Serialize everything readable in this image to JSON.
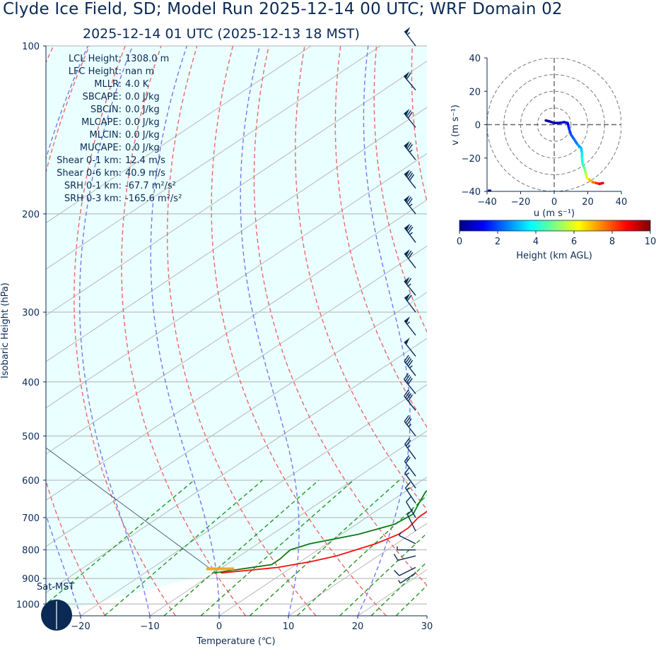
{
  "title": "Clyde Ice Field, SD; Model Run 2025-12-14 00 UTC; WRF Domain 02",
  "subtitle": "2025-12-14 01 UTC  (2025-12-13 18 MST)",
  "chart_data": [
    {
      "type": "skewt",
      "xlabel": "Temperature (℃)",
      "ylabel": "Isobaric Height (hPa)",
      "xlim": [
        -25,
        30
      ],
      "ylim": [
        1050,
        100
      ],
      "y_scale": "log",
      "x_ticks": [
        "−20",
        "−10",
        "0",
        "10",
        "20",
        "30"
      ],
      "x_tick_values": [
        -20,
        -10,
        0,
        10,
        20,
        30
      ],
      "y_ticks": [
        100,
        200,
        300,
        400,
        500,
        600,
        700,
        800,
        900,
        1000
      ],
      "grid": true,
      "stats": [
        {
          "label": "LCL Height:",
          "value": "1308.0 m"
        },
        {
          "label": "LFC Height:",
          "value": "nan m"
        },
        {
          "label": "MLLR:",
          "value": "4.0 K"
        },
        {
          "label": "SBCAPE:",
          "value": "0.0 J/kg"
        },
        {
          "label": "SBCIN:",
          "value": "0.0 J/kg"
        },
        {
          "label": "MLCAPE:",
          "value": "0.0 J/kg"
        },
        {
          "label": "MLCIN:",
          "value": "0.0 J/kg"
        },
        {
          "label": "MUCAPE:",
          "value": "0.0 J/kg"
        },
        {
          "label": "Shear 0-1 km:",
          "value": "12.4 m/s"
        },
        {
          "label": "Shear 0-6 km:",
          "value": "40.9 m/s"
        },
        {
          "label": "SRH 0-1 km:",
          "value": "-67.7 m²/s²"
        },
        {
          "label": "SRH 0-3 km:",
          "value": "-165.6 m²/s²"
        }
      ],
      "temperature_profile": {
        "color": "#ee1111",
        "points": [
          [
            880,
            -9
          ],
          [
            860,
            -2
          ],
          [
            840,
            1.5
          ],
          [
            820,
            4
          ],
          [
            780,
            7
          ],
          [
            750,
            8.3
          ],
          [
            730,
            8.3
          ],
          [
            700,
            7.5
          ],
          [
            650,
            7.3
          ],
          [
            600,
            7.5
          ],
          [
            550,
            9.5
          ],
          [
            500,
            10
          ],
          [
            460,
            8.5
          ],
          [
            420,
            6
          ],
          [
            380,
            3
          ],
          [
            340,
            0
          ],
          [
            300,
            -3
          ],
          [
            260,
            -6
          ],
          [
            230,
            -7.5
          ],
          [
            210,
            -8.5
          ],
          [
            190,
            -8.2
          ],
          [
            160,
            -5
          ],
          [
            140,
            -1
          ],
          [
            115,
            5
          ],
          [
            100,
            8
          ]
        ]
      },
      "dewpoint_profile": {
        "color": "#117711",
        "points": [
          [
            880,
            -10
          ],
          [
            850,
            -3.5
          ],
          [
            830,
            -3.5
          ],
          [
            800,
            -4
          ],
          [
            780,
            -2.5
          ],
          [
            750,
            2.5
          ],
          [
            720,
            5.5
          ],
          [
            690,
            6
          ],
          [
            660,
            4.5
          ],
          [
            630,
            3
          ],
          [
            600,
            2.5
          ],
          [
            560,
            2.5
          ],
          [
            520,
            1.2
          ],
          [
            480,
            0.5
          ],
          [
            450,
            0
          ],
          [
            420,
            -2
          ],
          [
            380,
            -4.5
          ],
          [
            340,
            -6
          ],
          [
            300,
            -7
          ],
          [
            260,
            -8.5
          ],
          [
            230,
            -9.5
          ],
          [
            210,
            -10
          ],
          [
            185,
            -9.5
          ],
          [
            160,
            -9.5
          ],
          [
            140,
            -9
          ],
          [
            125,
            -8.5
          ],
          [
            110,
            -6
          ],
          [
            100,
            -4
          ]
        ]
      },
      "parcel_marker": {
        "pressure": 865,
        "t_start": -12,
        "t_end": -8,
        "color": "#f5a623"
      },
      "wind_barbs": [
        {
          "p": 100,
          "u": 16,
          "v": -21
        },
        {
          "p": 120,
          "u": 20,
          "v": -24
        },
        {
          "p": 140,
          "u": 22,
          "v": -27
        },
        {
          "p": 160,
          "u": 23,
          "v": -29
        },
        {
          "p": 180,
          "u": 24,
          "v": -31
        },
        {
          "p": 200,
          "u": 24,
          "v": -30
        },
        {
          "p": 225,
          "u": 22,
          "v": -29
        },
        {
          "p": 250,
          "u": 21,
          "v": -27
        },
        {
          "p": 280,
          "u": 20,
          "v": -25
        },
        {
          "p": 300,
          "u": 18,
          "v": -24
        },
        {
          "p": 330,
          "u": 17,
          "v": -22
        },
        {
          "p": 360,
          "u": 15,
          "v": -19
        },
        {
          "p": 390,
          "u": 14,
          "v": -18
        },
        {
          "p": 420,
          "u": 13,
          "v": -16
        },
        {
          "p": 450,
          "u": 12,
          "v": -15
        },
        {
          "p": 500,
          "u": 10,
          "v": -13
        },
        {
          "p": 550,
          "u": 8,
          "v": -11
        },
        {
          "p": 590,
          "u": 6,
          "v": -8
        },
        {
          "p": 620,
          "u": 5,
          "v": -7
        },
        {
          "p": 660,
          "u": 4,
          "v": -6
        },
        {
          "p": 700,
          "u": 3,
          "v": -5
        },
        {
          "p": 740,
          "u": 2,
          "v": -4
        },
        {
          "p": 780,
          "u": 2,
          "v": -1
        },
        {
          "p": 800,
          "u": 3,
          "v": 0
        },
        {
          "p": 820,
          "u": 4,
          "v": 1
        },
        {
          "p": 860,
          "u": 4,
          "v": 2
        },
        {
          "p": 880,
          "u": 3,
          "v": 2
        }
      ],
      "inset_label": "Sat-MST",
      "legend": "none"
    },
    {
      "type": "hodograph",
      "xlabel": "u (m s⁻¹)",
      "ylabel": "v (m s⁻¹)",
      "xlim": [
        -40,
        40
      ],
      "ylim": [
        -40,
        40
      ],
      "x_ticks": [
        "−40",
        "−20",
        "0",
        "20",
        "40"
      ],
      "x_tick_values": [
        -40,
        -20,
        0,
        20,
        40
      ],
      "y_ticks": [
        "40",
        "20",
        "0",
        "−20",
        "−40"
      ],
      "y_tick_values": [
        40,
        20,
        0,
        -20,
        -40
      ],
      "rings": [
        10,
        20,
        30,
        40
      ],
      "points": [
        {
          "u": -5,
          "v": 2.5,
          "h": 0.05
        },
        {
          "u": -3,
          "v": 2,
          "h": 0.2
        },
        {
          "u": 0,
          "v": 1,
          "h": 0.4
        },
        {
          "u": 3,
          "v": 1,
          "h": 0.6
        },
        {
          "u": 6,
          "v": 1.5,
          "h": 0.8
        },
        {
          "u": 8,
          "v": 1,
          "h": 1.0
        },
        {
          "u": 8.5,
          "v": -1,
          "h": 1.2
        },
        {
          "u": 9,
          "v": -3,
          "h": 1.5
        },
        {
          "u": 10,
          "v": -6,
          "h": 1.8
        },
        {
          "u": 12,
          "v": -9,
          "h": 2.1
        },
        {
          "u": 14,
          "v": -12,
          "h": 2.4
        },
        {
          "u": 16,
          "v": -14,
          "h": 2.8
        },
        {
          "u": 16.5,
          "v": -17,
          "h": 3.2
        },
        {
          "u": 16.5,
          "v": -20,
          "h": 3.6
        },
        {
          "u": 17,
          "v": -24,
          "h": 4.0
        },
        {
          "u": 18,
          "v": -26,
          "h": 4.4
        },
        {
          "u": 18.5,
          "v": -28,
          "h": 4.8
        },
        {
          "u": 19,
          "v": -30,
          "h": 5.3
        },
        {
          "u": 19.5,
          "v": -32,
          "h": 5.8
        },
        {
          "u": 21,
          "v": -33,
          "h": 6.3
        },
        {
          "u": 23,
          "v": -34.5,
          "h": 6.9
        },
        {
          "u": 25,
          "v": -35,
          "h": 7.6
        },
        {
          "u": 27,
          "v": -35.5,
          "h": 8.3
        },
        {
          "u": 29,
          "v": -35,
          "h": 9.0
        }
      ],
      "colorbar": {
        "label": "Height (km AGL)",
        "ticks": [
          "0",
          "2",
          "4",
          "6",
          "8",
          "10"
        ],
        "tick_values": [
          0,
          2,
          4,
          6,
          8,
          10
        ],
        "range": [
          0,
          10
        ],
        "colormap": "jet"
      }
    }
  ]
}
